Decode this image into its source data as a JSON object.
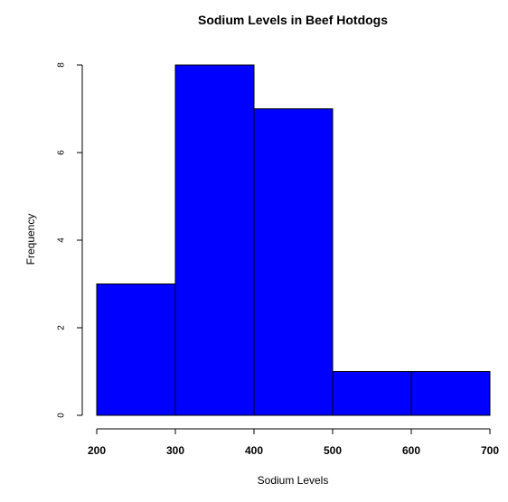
{
  "chart_data": {
    "type": "bar",
    "title": "Sodium Levels in Beef Hotdogs",
    "xlabel": "Sodium Levels",
    "ylabel": "Frequency",
    "bins": [
      {
        "start": 200,
        "end": 300,
        "count": 3
      },
      {
        "start": 300,
        "end": 400,
        "count": 8
      },
      {
        "start": 400,
        "end": 500,
        "count": 7
      },
      {
        "start": 500,
        "end": 600,
        "count": 1
      },
      {
        "start": 600,
        "end": 700,
        "count": 1
      }
    ],
    "x_ticks": [
      200,
      300,
      400,
      500,
      600,
      700
    ],
    "y_ticks": [
      0,
      2,
      4,
      6,
      8
    ],
    "xlim": [
      200,
      700
    ],
    "ylim": [
      0,
      8
    ],
    "grid": false,
    "legend": "none",
    "bar_color": "#0000ff",
    "bar_edge_color": "#000000"
  }
}
